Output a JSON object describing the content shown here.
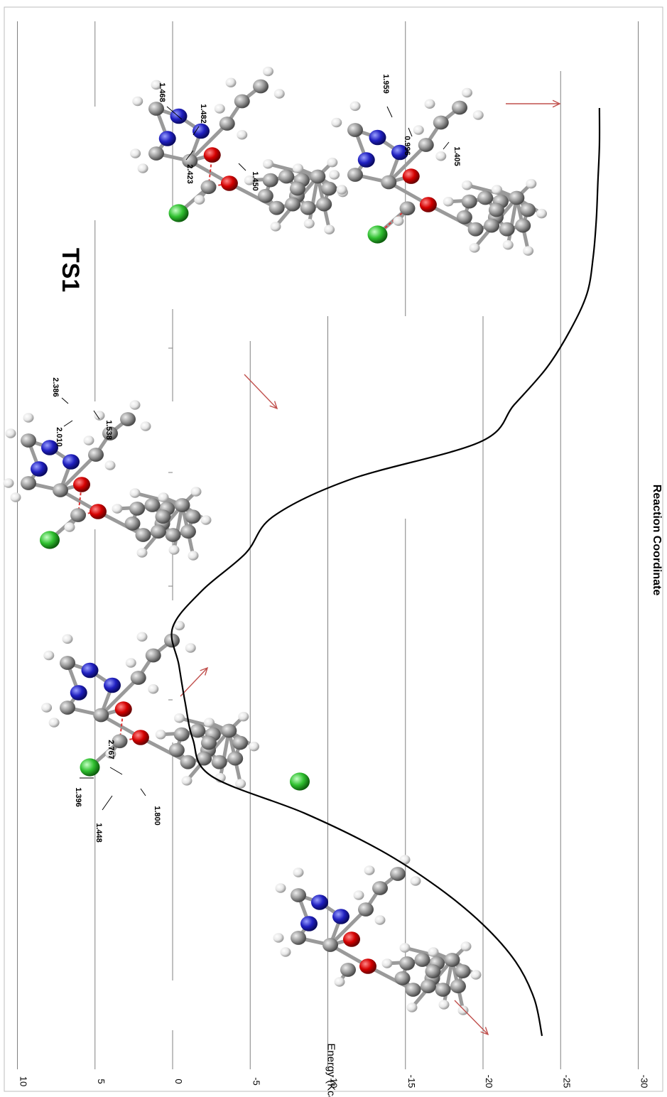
{
  "chart_data": {
    "type": "line",
    "orientation": "rotated-90",
    "title": "",
    "xlabel": "Reaction Coordinate",
    "ylabel": "Energy (Kcal/mol)",
    "ylim": [
      -30,
      10
    ],
    "yticks": [
      10,
      5,
      0,
      -5,
      -10,
      -15,
      -20,
      -25,
      -30
    ],
    "ytick_labels": [
      "10",
      "5",
      "0",
      "-5",
      "-10",
      "-15",
      "-20",
      "-25",
      "-30"
    ],
    "grid": true,
    "annotation": "TS1",
    "series": [
      {
        "x": [
          0,
          4,
          8,
          12,
          16,
          20,
          24,
          28,
          32,
          36,
          40,
          44,
          48,
          52,
          56,
          60,
          64,
          68,
          72,
          76,
          80,
          84,
          88,
          92,
          96,
          100
        ],
        "values": [
          -23.8,
          -23.3,
          -22.1,
          -20.0,
          -17.1,
          -13.4,
          -8.5,
          -2.5,
          -1.3,
          -0.8,
          -0.4,
          0.0,
          -1.9,
          -4.7,
          -6.5,
          -11.5,
          -19.8,
          -22.0,
          -24.1,
          -25.6,
          -26.7,
          -27.1,
          -27.3,
          -27.4,
          -27.5,
          -27.5
        ]
      }
    ],
    "structure_labels": {
      "reactant_complex": [
        "1.396",
        "1.448",
        "2.767",
        "1.800"
      ],
      "ts1": [
        "2.010",
        "2.386",
        "1.538"
      ],
      "intermediate": [
        "1.468",
        "1.482",
        "2.423",
        "1.450"
      ],
      "product": [
        "1.959",
        "0.996",
        "1.405"
      ]
    },
    "colors": {
      "curve": "#000000",
      "grid": "#808080",
      "arrow": "#c0504d",
      "oxygen": "#d40000",
      "nitrogen": "#2020c0",
      "chlorine": "#30c030",
      "carbon": "#8c8c8c",
      "hydrogen": "#e6e6e6"
    }
  }
}
